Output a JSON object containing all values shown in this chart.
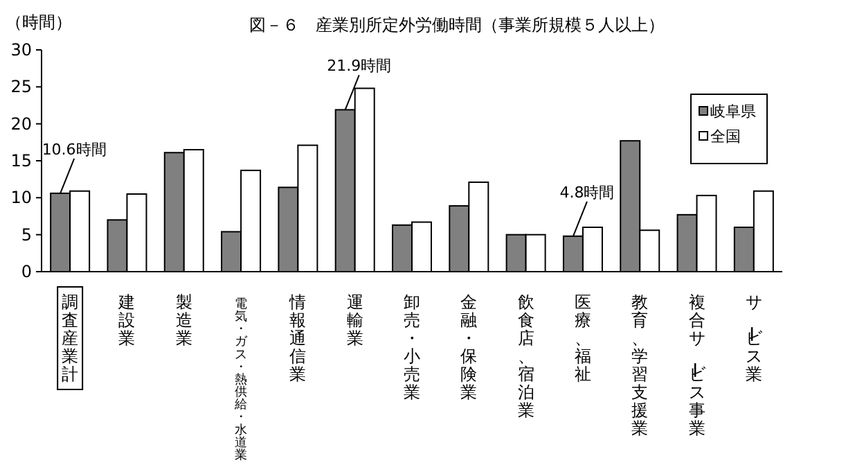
{
  "chart_data": {
    "type": "bar",
    "title": "図－６　産業別所定外労働時間（事業所規模５人以上）",
    "ylabel": "（時間）",
    "categories": [
      "調査産業計",
      "建設業",
      "製造業",
      "電気・ガス・熱供給・水道業",
      "情報通信業",
      "運輸業",
      "卸売・小売業",
      "金融・保険業",
      "飲食店、宿泊業",
      "医療、福祉",
      "教育、学習支援業",
      "複合サービス事業",
      "サービス業"
    ],
    "series": [
      {
        "name": "岐阜県",
        "color": "#808080",
        "values": [
          10.6,
          7.0,
          16.1,
          5.4,
          11.4,
          21.9,
          6.3,
          8.9,
          5.0,
          4.8,
          17.7,
          7.7,
          6.0
        ]
      },
      {
        "name": "全国",
        "color": "#ffffff",
        "values": [
          10.9,
          10.5,
          16.5,
          13.7,
          17.1,
          24.8,
          6.7,
          12.1,
          5.0,
          6.0,
          5.6,
          10.3,
          10.9
        ]
      }
    ],
    "ylim": [
      0,
      30
    ],
    "yticks": [
      0,
      5,
      10,
      15,
      20,
      25,
      30
    ],
    "grid": false,
    "legend": "top right",
    "annotations": [
      {
        "text": "10.6時間",
        "x": "調査産業計",
        "y": 10.6
      },
      {
        "text": "21.9時間",
        "x": "運輸業",
        "y": 21.9
      },
      {
        "text": "4.8時間",
        "x": "医療、福祉",
        "y": 4.8
      }
    ]
  }
}
